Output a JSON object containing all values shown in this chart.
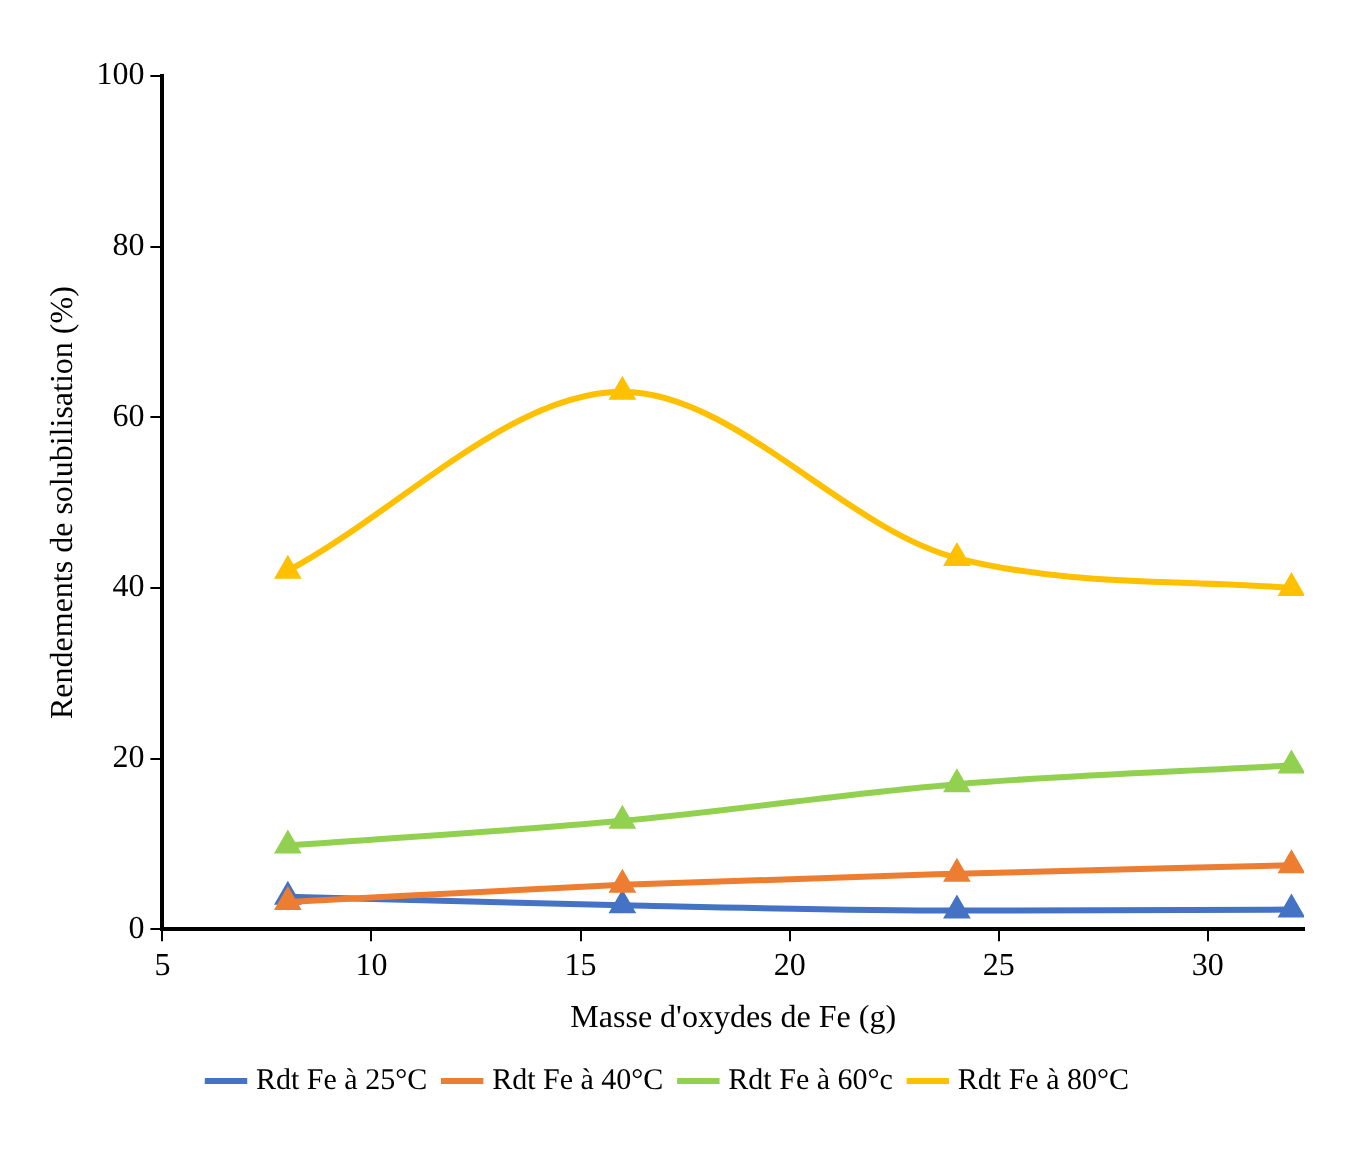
{
  "chart_data": {
    "type": "line",
    "xlabel": "Masse d'oxydes de Fe (g)",
    "ylabel": "Rendements de solubilisation (%)",
    "x": [
      8,
      16,
      24,
      32
    ],
    "series": [
      {
        "name": "Rdt Fe à 25°C",
        "color": "#4472c4",
        "values": [
          3.8,
          2.8,
          2.2,
          2.3
        ]
      },
      {
        "name": "Rdt Fe à 40°C",
        "color": "#ed7d31",
        "values": [
          3.2,
          5.2,
          6.5,
          7.5
        ]
      },
      {
        "name": "Rdt Fe à 60°c",
        "color": "#92d050",
        "values": [
          9.8,
          12.7,
          17,
          19.2
        ]
      },
      {
        "name": "Rdt Fe à 80°C",
        "color": "#ffc000",
        "values": [
          42,
          63,
          43.5,
          40
        ]
      }
    ],
    "xlim": [
      5,
      32.3
    ],
    "xticks": [
      5,
      10,
      15,
      20,
      25,
      30
    ],
    "ylim": [
      0,
      100
    ],
    "yticks": [
      0,
      20,
      40,
      60,
      80,
      100
    ],
    "grid": false,
    "legend": "bottom",
    "marker": "triangle",
    "line_style": "solid"
  }
}
